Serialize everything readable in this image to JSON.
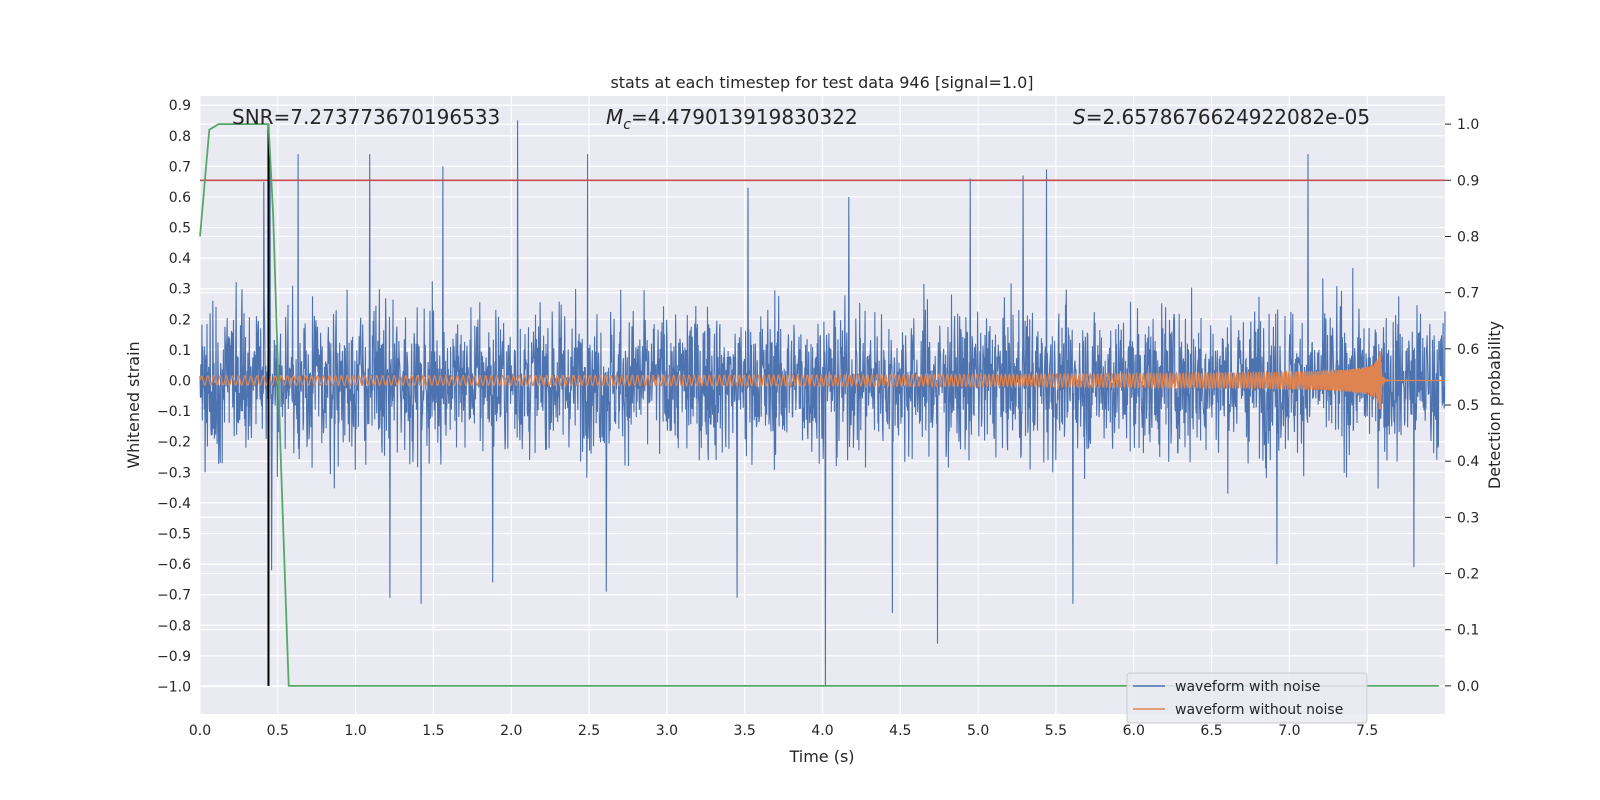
{
  "chart_data": {
    "type": "line",
    "title": "stats at each timestep for test data 946 [signal=1.0]",
    "xlabel": "Time (s)",
    "ylabel": "Whitened strain",
    "y2label": "Detection probability",
    "xlim": [
      0.0,
      8.0
    ],
    "ylim": [
      -1.09,
      0.93
    ],
    "y2lim": [
      -0.05,
      1.05
    ],
    "xticks": [
      "0.0",
      "0.5",
      "1.0",
      "1.5",
      "2.0",
      "2.5",
      "3.0",
      "3.5",
      "4.0",
      "4.5",
      "5.0",
      "5.5",
      "6.0",
      "6.5",
      "7.0",
      "7.5"
    ],
    "yticks": [
      "0.9",
      "0.8",
      "0.7",
      "0.6",
      "0.5",
      "0.4",
      "0.3",
      "0.2",
      "0.1",
      "0.0",
      "-0.1",
      "-0.2",
      "-0.3",
      "-0.4",
      "-0.5",
      "-0.6",
      "-0.7",
      "-0.8",
      "-0.9",
      "-1.0"
    ],
    "y2ticks": [
      "1.0",
      "0.9",
      "0.8",
      "0.7",
      "0.6",
      "0.5",
      "0.4",
      "0.3",
      "0.2",
      "0.1",
      "0.0"
    ],
    "annotations": {
      "snr": "SNR=7.273773670196533",
      "mc_sym": "M",
      "mc_sub": "c",
      "mc_val": "=4.479013919830322",
      "s_sym": "S",
      "s_val": "=2.6578676624922082e-05"
    },
    "legend": {
      "position": "lower-right",
      "entries": [
        "waveform with noise",
        "waveform without noise"
      ]
    },
    "series": [
      {
        "name": "waveform with noise",
        "color": "#4c72b0",
        "axis": "left",
        "envelope": {
          "noise_band": [
            -0.45,
            0.45
          ],
          "max": 0.85,
          "min": -1.0
        },
        "peaks": [
          {
            "x": 0.41,
            "y": 0.65
          },
          {
            "x": 0.45,
            "y": 0.72
          },
          {
            "x": 0.63,
            "y": 0.74
          },
          {
            "x": 1.09,
            "y": 0.74
          },
          {
            "x": 1.56,
            "y": 0.7
          },
          {
            "x": 2.04,
            "y": 0.85
          },
          {
            "x": 2.49,
            "y": 0.74
          },
          {
            "x": 3.52,
            "y": 0.63
          },
          {
            "x": 4.17,
            "y": 0.6
          },
          {
            "x": 4.95,
            "y": 0.66
          },
          {
            "x": 5.29,
            "y": 0.67
          },
          {
            "x": 5.44,
            "y": 0.69
          },
          {
            "x": 7.12,
            "y": 0.74
          }
        ],
        "troughs": [
          {
            "x": 0.46,
            "y": -0.62
          },
          {
            "x": 1.22,
            "y": -0.71
          },
          {
            "x": 1.42,
            "y": -0.73
          },
          {
            "x": 1.88,
            "y": -0.66
          },
          {
            "x": 2.61,
            "y": -0.69
          },
          {
            "x": 3.45,
            "y": -0.71
          },
          {
            "x": 4.02,
            "y": -1.0
          },
          {
            "x": 4.45,
            "y": -0.76
          },
          {
            "x": 4.74,
            "y": -0.86
          },
          {
            "x": 5.61,
            "y": -0.73
          },
          {
            "x": 6.92,
            "y": -0.6
          },
          {
            "x": 7.8,
            "y": -0.61
          }
        ]
      },
      {
        "name": "waveform without noise",
        "color": "#dd8452",
        "axis": "left",
        "chirp": {
          "start": 0.0,
          "merger": 7.58,
          "peak_amplitude": 0.16,
          "initial_amplitude": 0.015
        }
      },
      {
        "name": "detection probability",
        "color": "#55a868",
        "axis": "right",
        "x": [
          0.0,
          0.06,
          0.12,
          0.2,
          0.3,
          0.44,
          0.47,
          0.52,
          0.57,
          0.6,
          7.96
        ],
        "y": [
          0.8,
          0.99,
          1.0,
          1.0,
          1.0,
          1.0,
          0.84,
          0.4,
          0.0,
          0.0,
          0.0
        ]
      }
    ],
    "threshold": {
      "axis": "right",
      "value": 0.9,
      "color": "#c44e52"
    },
    "marker_line": {
      "x": 0.44,
      "color": "#000000"
    }
  }
}
